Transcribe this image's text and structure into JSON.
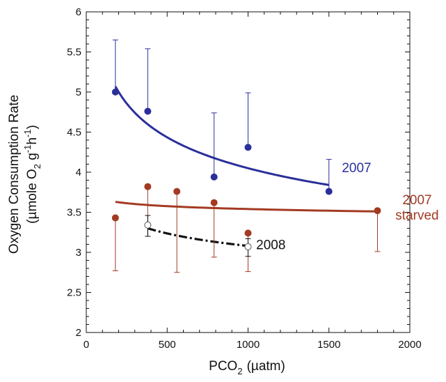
{
  "chart_data": {
    "type": "scatter",
    "title": "",
    "xlabel": {
      "main": "PCO",
      "sub": "2",
      "unit": "(µatm)"
    },
    "ylabel": {
      "line1": "Oxygen Consumption Rate",
      "line2_parts": [
        "(µmole O",
        "2",
        " g",
        "-1",
        "h",
        "-1",
        ")"
      ]
    },
    "xlim": [
      0,
      2000
    ],
    "ylim": [
      2,
      6
    ],
    "x_ticks": [
      0,
      500,
      1000,
      1500,
      2000
    ],
    "y_ticks": [
      2,
      2.5,
      3,
      3.5,
      4,
      4.5,
      5,
      5.5,
      6
    ],
    "x_tick_labels": [
      "0",
      "500",
      "1000",
      "1500",
      "2000"
    ],
    "y_tick_labels": [
      "2",
      "2.5",
      "3",
      "3.5",
      "4",
      "4.5",
      "5",
      "5.5",
      "6"
    ],
    "grid": false,
    "series": [
      {
        "name": "2007",
        "color": "#2a2f9a",
        "marker": "filled-circle",
        "label_lines": [
          "2007"
        ],
        "points": [
          {
            "x": 180,
            "y": 5.0,
            "err_up": 5.65
          },
          {
            "x": 380,
            "y": 4.76,
            "err_up": 5.54
          },
          {
            "x": 790,
            "y": 3.94,
            "err_up": 4.74
          },
          {
            "x": 1000,
            "y": 4.31,
            "err_up": 4.99
          },
          {
            "x": 1500,
            "y": 3.76,
            "err_up": 4.16
          }
        ],
        "fit": {
          "type": "power",
          "x_range": [
            180,
            1500
          ],
          "y_start": 5.07,
          "y_end": 3.84,
          "dashed": false
        }
      },
      {
        "name": "2007 starved",
        "color": "#a33a22",
        "marker": "filled-circle",
        "label_lines": [
          "2007",
          "starved"
        ],
        "points": [
          {
            "x": 180,
            "y": 3.43,
            "err_down": 2.77
          },
          {
            "x": 380,
            "y": 3.82,
            "err_down": 3.2
          },
          {
            "x": 560,
            "y": 3.76,
            "err_down": 2.75
          },
          {
            "x": 790,
            "y": 3.62,
            "err_down": 2.94
          },
          {
            "x": 1000,
            "y": 3.24,
            "err_down": 2.76
          },
          {
            "x": 1800,
            "y": 3.52,
            "err_down": 3.01
          }
        ],
        "fit": {
          "type": "power",
          "x_range": [
            180,
            1800
          ],
          "y_start": 3.63,
          "y_end": 3.51,
          "dashed": false
        }
      },
      {
        "name": "2008",
        "color": "#111111",
        "marker": "open-circle",
        "label_lines": [
          "2008"
        ],
        "points": [
          {
            "x": 380,
            "y": 3.34,
            "err_up": 3.46,
            "err_down": 3.2
          },
          {
            "x": 1000,
            "y": 3.07,
            "err_up": 3.17,
            "err_down": 2.95
          }
        ],
        "fit": {
          "type": "power",
          "x_range": [
            380,
            1000
          ],
          "y_start": 3.3,
          "y_end": 3.08,
          "dashed": true
        }
      }
    ]
  }
}
